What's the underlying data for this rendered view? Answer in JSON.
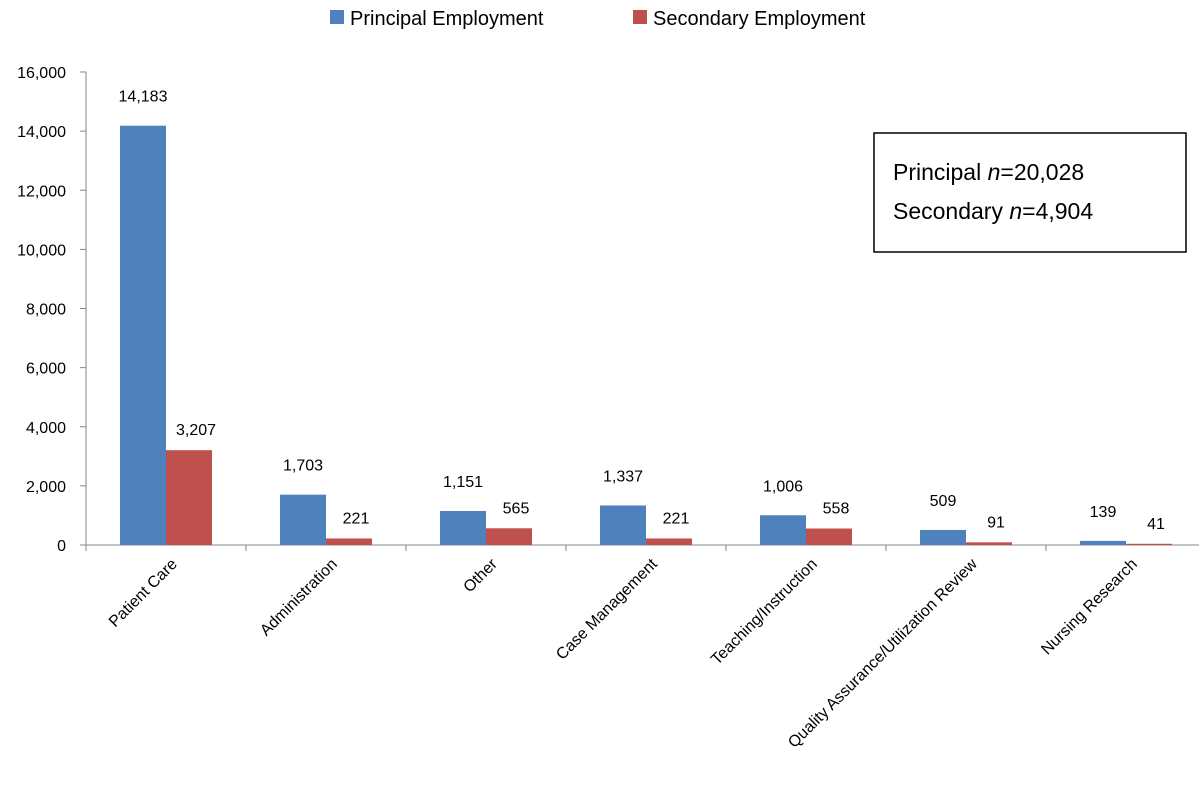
{
  "chart_data": {
    "type": "bar",
    "categories": [
      "Patient Care",
      "Administration",
      "Other",
      "Case Management",
      "Teaching/Instruction",
      "Quality Assurance/Utilization Review",
      "Nursing Research"
    ],
    "series": [
      {
        "name": "Principal Employment",
        "color": "#4F81BD",
        "values": [
          14183,
          1703,
          1151,
          1337,
          1006,
          509,
          139
        ],
        "labels": [
          "14,183",
          "1,703",
          "1,151",
          "1,337",
          "1,006",
          "509",
          "139"
        ]
      },
      {
        "name": "Secondary Employment",
        "color": "#C0504D",
        "values": [
          3207,
          221,
          565,
          221,
          558,
          91,
          41
        ],
        "labels": [
          "3,207",
          "221",
          "565",
          "221",
          "558",
          "91",
          "41"
        ]
      }
    ],
    "ylim": [
      0,
      16000
    ],
    "yticks": [
      0,
      2000,
      4000,
      6000,
      8000,
      10000,
      12000,
      14000,
      16000
    ],
    "ytick_labels": [
      "0",
      "2,000",
      "4,000",
      "6,000",
      "8,000",
      "10,000",
      "12,000",
      "14,000",
      "16,000"
    ],
    "grid": false,
    "legend_position": "top",
    "annotation": {
      "line1_label": "Principal ",
      "line1_var": "n",
      "line1_value": "=20,028",
      "line2_label": "Secondary ",
      "line2_var": "n",
      "line2_value": "=4,904"
    }
  }
}
